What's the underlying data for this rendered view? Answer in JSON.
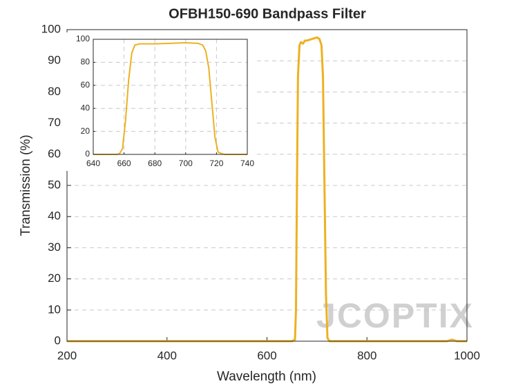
{
  "chart_data": [
    {
      "type": "line",
      "title": "OFBH150-690 Bandpass Filter",
      "x_label": "Wavelength (nm)",
      "y_label": "Transmission (%)",
      "x": [
        200,
        500,
        650,
        656,
        658,
        660,
        662,
        665,
        668,
        672,
        676,
        680,
        690,
        700,
        705,
        709,
        712,
        715,
        718,
        721,
        725,
        800,
        960,
        970,
        980,
        1000
      ],
      "values": [
        0,
        0,
        0,
        0.5,
        10,
        50,
        85,
        95,
        96,
        95.5,
        96.5,
        96.5,
        97,
        97.5,
        97,
        95,
        85,
        50,
        15,
        1,
        0,
        0,
        0,
        0.5,
        0,
        0
      ],
      "color": "#edb120",
      "xlim": [
        200,
        1000
      ],
      "xticks": [
        200,
        400,
        600,
        800,
        1000
      ],
      "ylim": [
        0,
        100
      ],
      "yticks": [
        0,
        10,
        20,
        30,
        40,
        50,
        60,
        70,
        80,
        90,
        100
      ],
      "grid": "y",
      "watermark": "JCOPTIX"
    },
    {
      "type": "line",
      "x": [
        640,
        655,
        657,
        659,
        661,
        663,
        665,
        667,
        670,
        675,
        680,
        690,
        700,
        708,
        711,
        713,
        715,
        717,
        719,
        721,
        725,
        740
      ],
      "values": [
        0,
        0,
        0.5,
        5,
        30,
        65,
        88,
        95,
        96,
        96,
        96,
        96.5,
        97,
        96.5,
        95,
        90,
        75,
        45,
        15,
        2,
        0,
        0
      ],
      "color": "#edb120",
      "xlim": [
        640,
        740
      ],
      "xticks": [
        640,
        660,
        680,
        700,
        720,
        740
      ],
      "ylim": [
        0,
        100
      ],
      "yticks": [
        0,
        20,
        40,
        60,
        80,
        100
      ],
      "grid": "both"
    }
  ]
}
